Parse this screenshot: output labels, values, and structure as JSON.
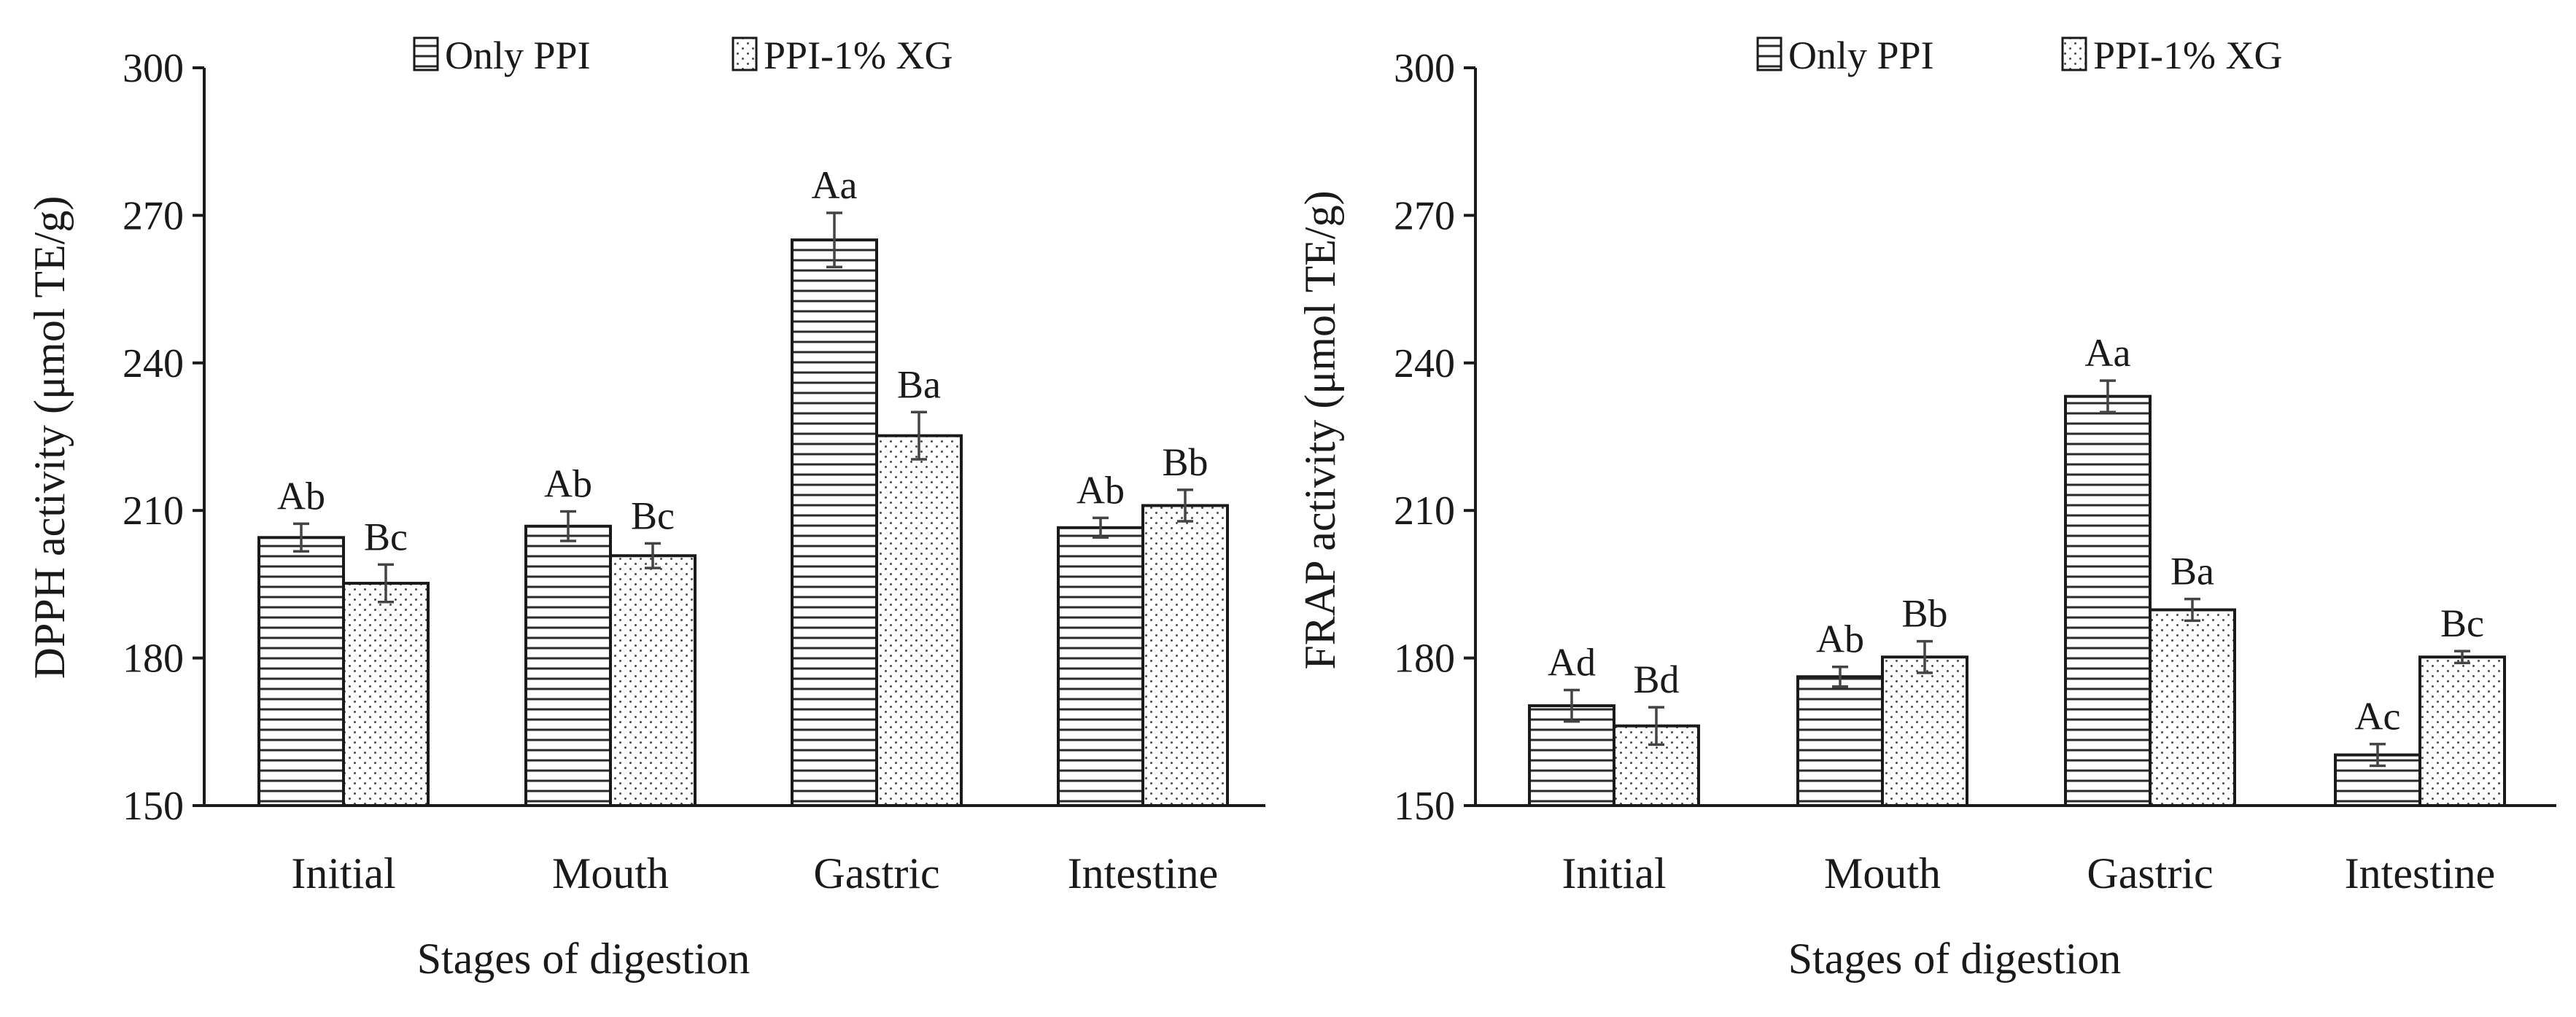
{
  "chart_data": [
    {
      "type": "bar",
      "ylabel": "DPPH  activity (μmol TE/g)",
      "xlabel": "Stages of digestion",
      "categories": [
        "Initial",
        "Mouth",
        "Gastric",
        "Intestine"
      ],
      "ylim": [
        150,
        300
      ],
      "yticks": [
        150,
        180,
        210,
        240,
        270,
        300
      ],
      "legend_position": "top-center",
      "series": [
        {
          "name": "Only PPI",
          "pattern": "horizontal-lines",
          "values": [
            204.5,
            206.8,
            265,
            206.5
          ],
          "errors": [
            2.8,
            3.0,
            5.5,
            2.0
          ],
          "labels": [
            "Ab",
            "Ab",
            "Aa",
            "Ab"
          ]
        },
        {
          "name": "PPI-1% XG",
          "pattern": "dots",
          "values": [
            195.2,
            200.8,
            225.2,
            211
          ],
          "errors": [
            3.8,
            2.5,
            4.8,
            3.2
          ],
          "labels": [
            "Bc",
            "Bc",
            "Ba",
            "Bb"
          ]
        }
      ]
    },
    {
      "type": "bar",
      "ylabel": "FRAP  activity (μmol TE/g)",
      "xlabel": "Stages of digestion",
      "categories": [
        "Initial",
        "Mouth",
        "Gastric",
        "Intestine"
      ],
      "ylim": [
        150,
        300
      ],
      "yticks": [
        150,
        180,
        210,
        240,
        270,
        300
      ],
      "legend_position": "top-center",
      "series": [
        {
          "name": "Only PPI",
          "pattern": "horizontal-lines",
          "values": [
            170.3,
            176.2,
            233.2,
            160.3
          ],
          "errors": [
            3.2,
            2.0,
            3.2,
            2.2
          ],
          "labels": [
            "Ad",
            "Ab",
            "Aa",
            "Ac"
          ]
        },
        {
          "name": "PPI-1% XG",
          "pattern": "dots",
          "values": [
            166.2,
            180.2,
            189.8,
            180.2
          ],
          "errors": [
            3.8,
            3.2,
            2.2,
            1.2
          ],
          "labels": [
            "Bd",
            "Bb",
            "Ba",
            "Bc"
          ]
        }
      ]
    }
  ]
}
